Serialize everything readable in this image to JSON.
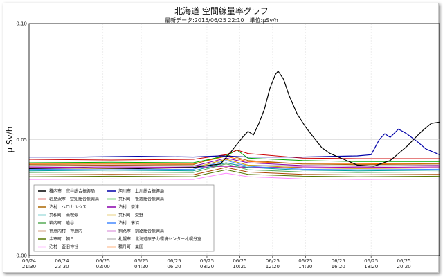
{
  "chart_data": {
    "type": "line",
    "title": "北海道 空間線量率グラフ",
    "subtitle": "最新データ:2015/06/25 22:10　単位:μSv/h",
    "ylabel": "μ Sv/h",
    "xlabel": "",
    "ylim": [
      0.0,
      0.1
    ],
    "y_ticks": [
      "0.00",
      "0.05",
      "0.10"
    ],
    "y_tick_values": [
      0.0,
      0.05,
      0.1
    ],
    "x_range": [
      0,
      1500
    ],
    "x_ticks": [
      {
        "value": 0,
        "date": "06/24",
        "time": "21:30"
      },
      {
        "value": 120,
        "date": "06/24",
        "time": "23:30"
      },
      {
        "value": 270,
        "date": "06/25",
        "time": "02:00"
      },
      {
        "value": 410,
        "date": "06/25",
        "time": "04:20"
      },
      {
        "value": 530,
        "date": "06/25",
        "time": "06:20"
      },
      {
        "value": 650,
        "date": "06/25",
        "time": "08:20"
      },
      {
        "value": 770,
        "date": "06/25",
        "time": "10:20"
      },
      {
        "value": 890,
        "date": "06/25",
        "time": "12:20"
      },
      {
        "value": 1010,
        "date": "06/25",
        "time": "14:20"
      },
      {
        "value": 1130,
        "date": "06/25",
        "time": "16:20"
      },
      {
        "value": 1250,
        "date": "06/25",
        "time": "18:20"
      },
      {
        "value": 1370,
        "date": "06/25",
        "time": "20:20"
      }
    ],
    "grid": true,
    "legend_position": "bottom-left",
    "series": [
      {
        "name": "稚内市　宗谷総合振興局",
        "color": "#000000",
        "points": [
          [
            0,
            0.0375
          ],
          [
            200,
            0.0378
          ],
          [
            400,
            0.0375
          ],
          [
            600,
            0.038
          ],
          [
            700,
            0.0395
          ],
          [
            740,
            0.045
          ],
          [
            780,
            0.051
          ],
          [
            800,
            0.0535
          ],
          [
            820,
            0.052
          ],
          [
            840,
            0.057
          ],
          [
            860,
            0.063
          ],
          [
            880,
            0.072
          ],
          [
            900,
            0.078
          ],
          [
            910,
            0.0795
          ],
          [
            930,
            0.076
          ],
          [
            950,
            0.069
          ],
          [
            980,
            0.061
          ],
          [
            1010,
            0.0555
          ],
          [
            1040,
            0.051
          ],
          [
            1070,
            0.0465
          ],
          [
            1100,
            0.044
          ],
          [
            1150,
            0.0415
          ],
          [
            1200,
            0.039
          ],
          [
            1260,
            0.0385
          ],
          [
            1320,
            0.041
          ],
          [
            1380,
            0.047
          ],
          [
            1430,
            0.053
          ],
          [
            1470,
            0.057
          ],
          [
            1500,
            0.0575
          ]
        ]
      },
      {
        "name": "旭川市　上川総合振興局",
        "color": "#0000a8",
        "points": [
          [
            0,
            0.0425
          ],
          [
            200,
            0.0425
          ],
          [
            400,
            0.0428
          ],
          [
            600,
            0.0425
          ],
          [
            700,
            0.043
          ],
          [
            800,
            0.0425
          ],
          [
            1000,
            0.0425
          ],
          [
            1200,
            0.043
          ],
          [
            1250,
            0.0435
          ],
          [
            1280,
            0.05
          ],
          [
            1300,
            0.0525
          ],
          [
            1320,
            0.051
          ],
          [
            1350,
            0.0545
          ],
          [
            1380,
            0.0525
          ],
          [
            1420,
            0.049
          ],
          [
            1450,
            0.046
          ],
          [
            1480,
            0.0445
          ],
          [
            1500,
            0.0435
          ]
        ]
      },
      {
        "name": "岩見沢市　空知総合振興局",
        "color": "#cc0000",
        "points": [
          [
            0,
            0.0415
          ],
          [
            300,
            0.0412
          ],
          [
            600,
            0.0415
          ],
          [
            720,
            0.0435
          ],
          [
            760,
            0.0455
          ],
          [
            800,
            0.044
          ],
          [
            1000,
            0.042
          ],
          [
            1200,
            0.0418
          ],
          [
            1500,
            0.0418
          ]
        ]
      },
      {
        "name": "共和町　後志総合振興局",
        "color": "#00aa00",
        "points": [
          [
            0,
            0.04
          ],
          [
            300,
            0.0402
          ],
          [
            600,
            0.04
          ],
          [
            720,
            0.043
          ],
          [
            760,
            0.0455
          ],
          [
            800,
            0.042
          ],
          [
            1000,
            0.041
          ],
          [
            1200,
            0.0405
          ],
          [
            1500,
            0.0405
          ]
        ]
      },
      {
        "name": "泊村　ヘロカルウス",
        "color": "#aa6600",
        "points": [
          [
            0,
            0.0392
          ],
          [
            300,
            0.039
          ],
          [
            600,
            0.0392
          ],
          [
            720,
            0.0435
          ],
          [
            800,
            0.041
          ],
          [
            1000,
            0.0395
          ],
          [
            1200,
            0.0392
          ],
          [
            1500,
            0.0395
          ]
        ]
      },
      {
        "name": "泊村　茶津",
        "color": "#8800aa",
        "points": [
          [
            0,
            0.0385
          ],
          [
            300,
            0.0388
          ],
          [
            600,
            0.0385
          ],
          [
            720,
            0.042
          ],
          [
            800,
            0.04
          ],
          [
            1000,
            0.0388
          ],
          [
            1200,
            0.0385
          ],
          [
            1500,
            0.0388
          ]
        ]
      },
      {
        "name": "共和町　南幌似",
        "color": "#00a0a0",
        "points": [
          [
            0,
            0.0365
          ],
          [
            300,
            0.0368
          ],
          [
            600,
            0.0365
          ],
          [
            720,
            0.04
          ],
          [
            800,
            0.038
          ],
          [
            1000,
            0.0368
          ],
          [
            1200,
            0.0365
          ],
          [
            1500,
            0.0368
          ]
        ]
      },
      {
        "name": "共和町　梨野",
        "color": "#d0a000",
        "points": [
          [
            0,
            0.0378
          ],
          [
            300,
            0.0375
          ],
          [
            600,
            0.0378
          ],
          [
            720,
            0.0415
          ],
          [
            800,
            0.039
          ],
          [
            1000,
            0.0378
          ],
          [
            1200,
            0.0375
          ],
          [
            1500,
            0.0378
          ]
        ]
      },
      {
        "name": "岩内町　迫谷",
        "color": "#55aa55",
        "points": [
          [
            0,
            0.0358
          ],
          [
            300,
            0.036
          ],
          [
            600,
            0.0358
          ],
          [
            720,
            0.0395
          ],
          [
            800,
            0.037
          ],
          [
            1000,
            0.036
          ],
          [
            1200,
            0.0358
          ],
          [
            1500,
            0.036
          ]
        ]
      },
      {
        "name": "泊村　茅沼",
        "color": "#4488ff",
        "points": [
          [
            0,
            0.0372
          ],
          [
            300,
            0.037
          ],
          [
            600,
            0.0372
          ],
          [
            720,
            0.041
          ],
          [
            800,
            0.0385
          ],
          [
            1000,
            0.0372
          ],
          [
            1200,
            0.037
          ],
          [
            1500,
            0.0372
          ]
        ]
      },
      {
        "name": "神恵内村　神恵内",
        "color": "#aa4400",
        "points": [
          [
            0,
            0.0348
          ],
          [
            300,
            0.035
          ],
          [
            600,
            0.0348
          ],
          [
            720,
            0.038
          ],
          [
            800,
            0.036
          ],
          [
            1000,
            0.035
          ],
          [
            1200,
            0.0348
          ],
          [
            1500,
            0.035
          ]
        ]
      },
      {
        "name": "釧路市　釧路総合振興局",
        "color": "#aa00aa",
        "points": [
          [
            0,
            0.038
          ],
          [
            300,
            0.0382
          ],
          [
            600,
            0.038
          ],
          [
            720,
            0.0385
          ],
          [
            800,
            0.038
          ],
          [
            1000,
            0.0382
          ],
          [
            1200,
            0.038
          ],
          [
            1500,
            0.0382
          ]
        ]
      },
      {
        "name": "余市町　朝日",
        "color": "#557700",
        "points": [
          [
            0,
            0.034
          ],
          [
            300,
            0.0342
          ],
          [
            600,
            0.034
          ],
          [
            720,
            0.037
          ],
          [
            800,
            0.035
          ],
          [
            1000,
            0.0342
          ],
          [
            1200,
            0.034
          ],
          [
            1500,
            0.0342
          ]
        ]
      },
      {
        "name": "札幌市　北海道原子力環境センター札幌分室",
        "color": "#c0c0c0",
        "points": [
          [
            0,
            0.0388
          ],
          [
            300,
            0.039
          ],
          [
            600,
            0.0388
          ],
          [
            720,
            0.0395
          ],
          [
            800,
            0.039
          ],
          [
            1000,
            0.0388
          ],
          [
            1200,
            0.0388
          ],
          [
            1500,
            0.039
          ]
        ]
      },
      {
        "name": "泊村　盃旧神社",
        "color": "#ff88ff",
        "points": [
          [
            0,
            0.0328
          ],
          [
            300,
            0.033
          ],
          [
            600,
            0.0328
          ],
          [
            720,
            0.0355
          ],
          [
            800,
            0.034
          ],
          [
            1000,
            0.033
          ],
          [
            1200,
            0.0328
          ],
          [
            1500,
            0.033
          ]
        ]
      },
      {
        "name": "積丹町　美国",
        "color": "#ff6600",
        "points": [
          [
            0,
            0.0395
          ],
          [
            300,
            0.0395
          ],
          [
            600,
            0.0395
          ],
          [
            720,
            0.0428
          ],
          [
            800,
            0.0405
          ],
          [
            1000,
            0.0395
          ],
          [
            1200,
            0.0395
          ],
          [
            1500,
            0.0398
          ]
        ]
      }
    ]
  }
}
